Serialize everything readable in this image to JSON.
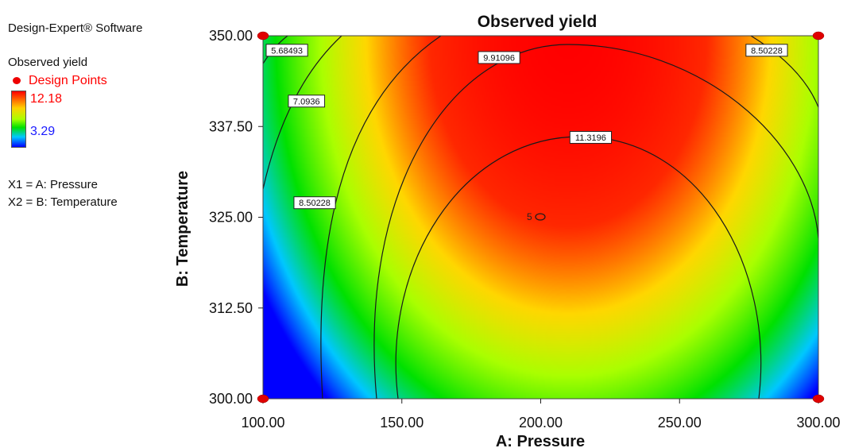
{
  "software_label": "Design-Expert® Software",
  "legend": {
    "title": "Observed yield",
    "design_points_label": "Design Points",
    "max_value": "12.18",
    "min_value": "3.29",
    "factors": [
      "X1 = A: Pressure",
      "X2 = B: Temperature"
    ]
  },
  "chart_data": {
    "type": "contour",
    "title": "Observed yield",
    "xlabel": "A: Pressure",
    "ylabel": "B: Temperature",
    "xlim": [
      100,
      300
    ],
    "ylim": [
      300,
      350
    ],
    "x_ticks": [
      "100.00",
      "150.00",
      "200.00",
      "250.00",
      "300.00"
    ],
    "y_ticks": [
      "300.00",
      "312.50",
      "325.00",
      "337.50",
      "350.00"
    ],
    "response_range": [
      3.29,
      12.18
    ],
    "color_scale": [
      "#0000ff",
      "#00c8ff",
      "#00e000",
      "#aaff00",
      "#ffd000",
      "#ff0000"
    ],
    "contour_levels": [
      {
        "value": "5.68493",
        "label_at": [
          100,
          348
        ],
        "pos": "right"
      },
      {
        "value": "7.0936",
        "label_at": [
          108,
          341
        ],
        "pos": "right"
      },
      {
        "value": "8.50228",
        "label_at": [
          110,
          327
        ],
        "pos": "right"
      },
      {
        "value": "8.50228",
        "label_at": [
          290,
          348
        ],
        "pos": "left"
      },
      {
        "value": "9.91096",
        "label_at": [
          185,
          347
        ],
        "pos": "center"
      },
      {
        "value": "11.3196",
        "label_at": [
          218,
          336
        ],
        "pos": "center"
      }
    ],
    "center_point": {
      "x": 200,
      "y": 325,
      "label": "5"
    },
    "design_points": [
      {
        "x": 100,
        "y": 300
      },
      {
        "x": 100,
        "y": 350
      },
      {
        "x": 300,
        "y": 300
      },
      {
        "x": 300,
        "y": 350
      }
    ]
  }
}
